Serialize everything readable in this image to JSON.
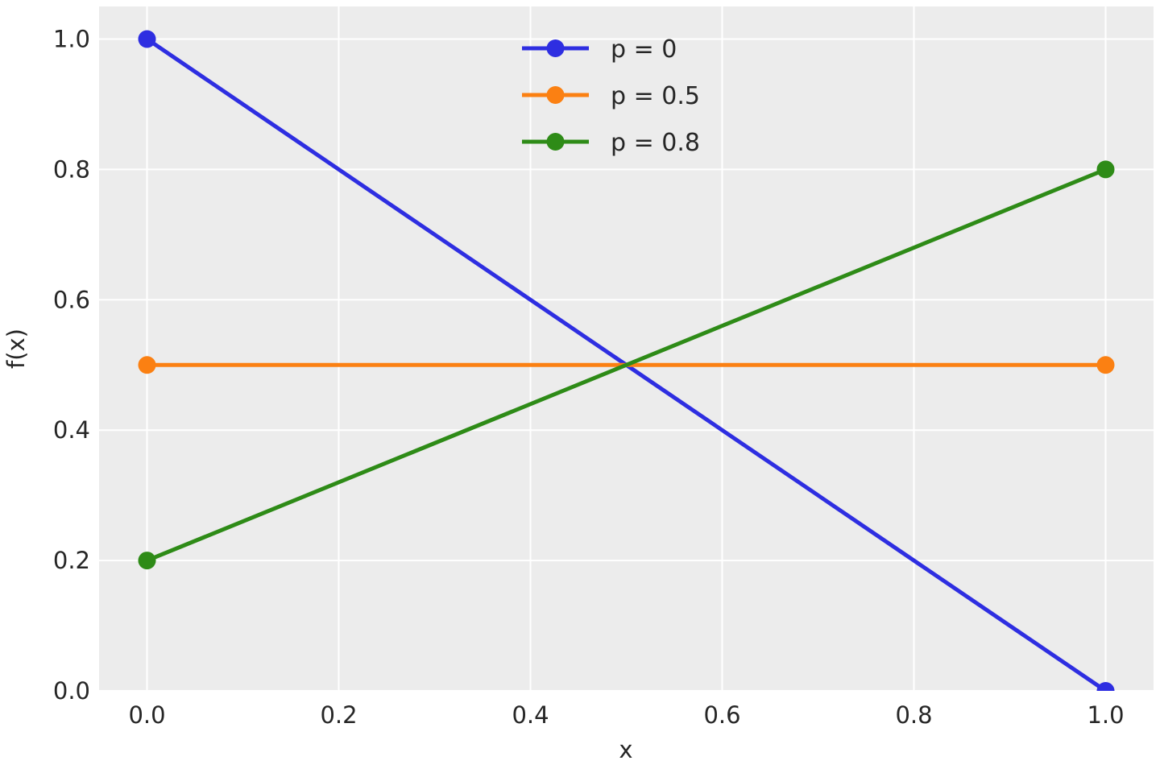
{
  "chart_data": {
    "type": "line",
    "title": "",
    "xlabel": "x",
    "ylabel": "f(x)",
    "x": [
      0.0,
      1.0
    ],
    "series": [
      {
        "name": "p = 0",
        "values": [
          1.0,
          0.0
        ],
        "color": "#2e2ee1"
      },
      {
        "name": "p = 0.5",
        "values": [
          0.5,
          0.5
        ],
        "color": "#fb8012"
      },
      {
        "name": "p = 0.8",
        "values": [
          0.2,
          0.8
        ],
        "color": "#2e8b17"
      }
    ],
    "xlim": [
      -0.05,
      1.05
    ],
    "ylim": [
      0.0,
      1.05
    ],
    "xticks": [
      0.0,
      0.2,
      0.4,
      0.6,
      0.8,
      1.0
    ],
    "yticks": [
      0.0,
      0.2,
      0.4,
      0.6,
      0.8,
      1.0
    ],
    "grid": true,
    "marker": "circle",
    "legend": {
      "position": "upper center",
      "frame": false,
      "entries": [
        "p = 0",
        "p = 0.5",
        "p = 0.8"
      ]
    },
    "colors": {
      "figure_background": "#ffffff",
      "plot_background": "#ececec",
      "grid": "#ffffff",
      "text": "#262626"
    }
  }
}
